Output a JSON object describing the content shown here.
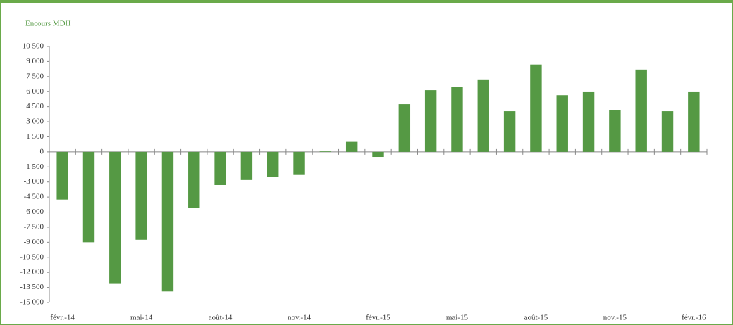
{
  "chart_data": {
    "type": "bar",
    "title": "Encours MDH",
    "color": "#559944",
    "categories": [
      "févr.-14",
      null,
      null,
      "mai-14",
      null,
      null,
      "août-14",
      null,
      null,
      "nov.-14",
      null,
      null,
      "févr.-15",
      null,
      null,
      "mai-15",
      null,
      null,
      "août-15",
      null,
      null,
      "nov.-15",
      null,
      null,
      "févr.-16"
    ],
    "values": [
      -4750,
      -9000,
      -13150,
      -8750,
      -13900,
      -5600,
      -3300,
      -2800,
      -2500,
      -2300,
      50,
      1000,
      -500,
      4750,
      6150,
      6500,
      7150,
      4050,
      8700,
      5650,
      5950,
      4150,
      8200,
      4050,
      5950
    ],
    "ylim": [
      -15000,
      10500
    ],
    "yticks": [
      {
        "value": -15000,
        "label": "-15 000"
      },
      {
        "value": -13500,
        "label": "-13 500"
      },
      {
        "value": -12000,
        "label": "-12 000"
      },
      {
        "value": -10500,
        "label": "-10 500"
      },
      {
        "value": -9000,
        "label": "-9 000"
      },
      {
        "value": -7500,
        "label": "-7 500"
      },
      {
        "value": -6000,
        "label": "-6 000"
      },
      {
        "value": -4500,
        "label": "-4 500"
      },
      {
        "value": -3000,
        "label": "-3 000"
      },
      {
        "value": -1500,
        "label": "-1 500"
      },
      0,
      {
        "value": 1500,
        "label": "1 500"
      },
      {
        "value": 3000,
        "label": "3 000"
      },
      {
        "value": 4500,
        "label": "4 500"
      },
      {
        "value": 6000,
        "label": "6 000"
      },
      {
        "value": 7500,
        "label": "7 500"
      },
      {
        "value": 9000,
        "label": "9 000"
      },
      {
        "value": 10500,
        "label": "10 500"
      }
    ]
  }
}
